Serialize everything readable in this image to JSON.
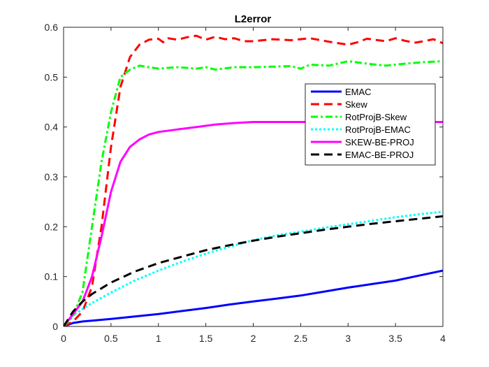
{
  "chart_data": {
    "type": "line",
    "title": "L2error",
    "xlabel": "",
    "ylabel": "",
    "xlim": [
      0,
      4
    ],
    "ylim": [
      0,
      0.6
    ],
    "x_ticks": [
      "0",
      "0.5",
      "1",
      "1.5",
      "2",
      "2.5",
      "3",
      "3.5",
      "4"
    ],
    "y_ticks": [
      "0",
      "0.1",
      "0.2",
      "0.3",
      "0.4",
      "0.5",
      "0.6"
    ],
    "grid": false,
    "legend_position": "top-right",
    "series": [
      {
        "name": "EMAC",
        "color": "#0000ff",
        "style": "solid",
        "x": [
          0,
          0.1,
          0.2,
          0.5,
          0.75,
          1.0,
          1.25,
          1.5,
          1.75,
          2.0,
          2.25,
          2.5,
          2.75,
          3.0,
          3.25,
          3.5,
          3.75,
          4.0
        ],
        "y": [
          0,
          0.007,
          0.01,
          0.015,
          0.02,
          0.025,
          0.031,
          0.037,
          0.044,
          0.05,
          0.056,
          0.062,
          0.07,
          0.078,
          0.085,
          0.092,
          0.102,
          0.112
        ]
      },
      {
        "name": "Skew",
        "color": "#ff0000",
        "style": "dashed",
        "x": [
          0,
          0.1,
          0.2,
          0.3,
          0.4,
          0.5,
          0.6,
          0.7,
          0.8,
          0.9,
          1.0,
          1.05,
          1.1,
          1.2,
          1.3,
          1.4,
          1.5,
          1.6,
          1.7,
          1.8,
          1.9,
          2.0,
          2.2,
          2.4,
          2.6,
          2.8,
          3.0,
          3.1,
          3.2,
          3.4,
          3.5,
          3.6,
          3.7,
          3.8,
          3.9,
          4.0
        ],
        "y": [
          0,
          0.01,
          0.03,
          0.08,
          0.2,
          0.36,
          0.48,
          0.54,
          0.565,
          0.575,
          0.577,
          0.57,
          0.578,
          0.575,
          0.58,
          0.583,
          0.575,
          0.581,
          0.576,
          0.578,
          0.572,
          0.572,
          0.576,
          0.574,
          0.578,
          0.571,
          0.565,
          0.57,
          0.577,
          0.572,
          0.578,
          0.573,
          0.569,
          0.572,
          0.576,
          0.568
        ]
      },
      {
        "name": "RotProjB-Skew",
        "color": "#00ff00",
        "style": "dashdot",
        "x": [
          0,
          0.1,
          0.2,
          0.3,
          0.4,
          0.5,
          0.6,
          0.7,
          0.8,
          0.9,
          1.0,
          1.2,
          1.4,
          1.5,
          1.6,
          1.8,
          2.0,
          2.2,
          2.4,
          2.5,
          2.6,
          2.8,
          3.0,
          3.2,
          3.4,
          3.6,
          3.8,
          4.0
        ],
        "y": [
          0,
          0.02,
          0.07,
          0.2,
          0.33,
          0.43,
          0.5,
          0.515,
          0.523,
          0.52,
          0.517,
          0.52,
          0.517,
          0.52,
          0.515,
          0.52,
          0.52,
          0.521,
          0.522,
          0.517,
          0.525,
          0.523,
          0.532,
          0.527,
          0.523,
          0.527,
          0.53,
          0.532
        ]
      },
      {
        "name": "RotProjB-EMAC",
        "color": "#00ffff",
        "style": "dotted",
        "x": [
          0,
          0.1,
          0.2,
          0.3,
          0.5,
          0.75,
          1.0,
          1.25,
          1.5,
          1.75,
          2.0,
          2.25,
          2.5,
          2.75,
          3.0,
          3.25,
          3.5,
          3.75,
          4.0
        ],
        "y": [
          0,
          0.022,
          0.035,
          0.047,
          0.068,
          0.092,
          0.112,
          0.13,
          0.146,
          0.16,
          0.173,
          0.183,
          0.19,
          0.198,
          0.205,
          0.212,
          0.219,
          0.225,
          0.23
        ]
      },
      {
        "name": "SKEW-BE-PROJ",
        "color": "#ff00ff",
        "style": "solid",
        "x": [
          0,
          0.1,
          0.2,
          0.3,
          0.4,
          0.5,
          0.6,
          0.7,
          0.8,
          0.9,
          1.0,
          1.2,
          1.4,
          1.6,
          1.8,
          2.0,
          2.5,
          3.0,
          3.5,
          4.0
        ],
        "y": [
          0,
          0.025,
          0.05,
          0.1,
          0.18,
          0.27,
          0.33,
          0.36,
          0.375,
          0.385,
          0.39,
          0.395,
          0.4,
          0.405,
          0.408,
          0.41,
          0.41,
          0.41,
          0.41,
          0.41
        ]
      },
      {
        "name": "EMAC-BE-PROJ",
        "color": "#000000",
        "style": "dashed",
        "x": [
          0,
          0.1,
          0.2,
          0.3,
          0.5,
          0.75,
          1.0,
          1.25,
          1.5,
          1.75,
          2.0,
          2.25,
          2.5,
          2.75,
          3.0,
          3.25,
          3.5,
          3.75,
          4.0
        ],
        "y": [
          0,
          0.03,
          0.05,
          0.065,
          0.088,
          0.11,
          0.127,
          0.14,
          0.153,
          0.163,
          0.172,
          0.18,
          0.187,
          0.194,
          0.2,
          0.206,
          0.211,
          0.216,
          0.221
        ]
      }
    ]
  }
}
